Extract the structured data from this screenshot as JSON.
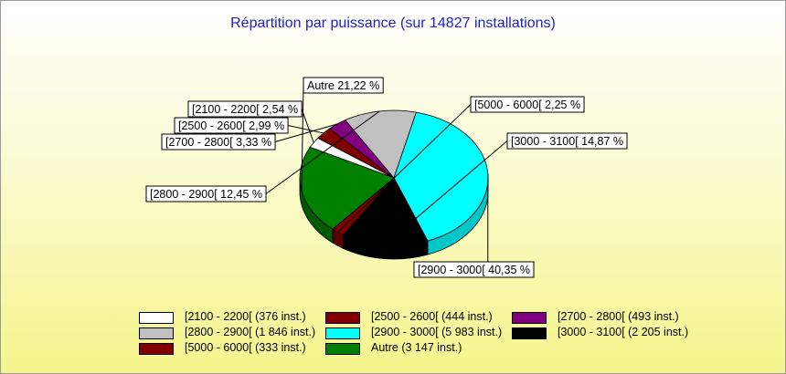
{
  "chart_data": {
    "type": "pie",
    "title": "Répartition par puissance (sur 14827 installations)",
    "slices": [
      {
        "name": "[2100 - 2200[",
        "label": "[2100 - 2200[ 2,54 %",
        "percent": 2.54,
        "count": 376,
        "color": "#ffffff",
        "side": "#c8c8c8",
        "legend": "[2100 - 2200[ (376 inst.)"
      },
      {
        "name": "[2500 - 2600[",
        "label": "[2500 - 2600[ 2,99 %",
        "percent": 2.99,
        "count": 444,
        "color": "#800000",
        "side": "#5a0000",
        "legend": "[2500 - 2600[ (444 inst.)"
      },
      {
        "name": "[2700 - 2800[",
        "label": "[2700 - 2800[ 3,33 %",
        "percent": 3.33,
        "count": 493,
        "color": "#800080",
        "side": "#5a005a",
        "legend": "[2700 - 2800[ (493 inst.)"
      },
      {
        "name": "[2800 - 2900[",
        "label": "[2800 - 2900[ 12,45 %",
        "percent": 12.45,
        "count": 1846,
        "color": "#c0c0c0",
        "side": "#8f8f8f",
        "legend": "[2800 - 2900[ (1 846 inst.)"
      },
      {
        "name": "[2900 - 3000[",
        "label": "[2900 - 3000[ 40,35 %",
        "percent": 40.35,
        "count": 5983,
        "color": "#00ffff",
        "side": "#00c8c8",
        "legend": "[2900 - 3000[ (5 983 inst.)"
      },
      {
        "name": "[3000 - 3100[",
        "label": "[3000 - 3100[ 14,87 %",
        "percent": 14.87,
        "count": 2205,
        "color": "#000000",
        "side": "#000000",
        "legend": "[3000 - 3100[ (2 205 inst.)"
      },
      {
        "name": "[5000 - 6000[",
        "label": "[5000 - 6000[ 2,25 %",
        "percent": 2.25,
        "count": 333,
        "color": "#800000",
        "side": "#5a0000",
        "legend": "[5000 - 6000[ (333 inst.)"
      },
      {
        "name": "Autre",
        "label": "Autre 21,22 %",
        "percent": 21.22,
        "count": 3147,
        "color": "#008000",
        "side": "#005a00",
        "legend": "Autre (3 147 inst.)"
      }
    ],
    "legend_order": [
      "[2100 - 2200[",
      "[2500 - 2600[",
      "[2700 - 2800[",
      "[2800 - 2900[",
      "[2900 - 3000[",
      "[3000 - 3100[",
      "[5000 - 6000[",
      "Autre"
    ],
    "legend_placement": "bottom",
    "style": "3d-pie"
  }
}
